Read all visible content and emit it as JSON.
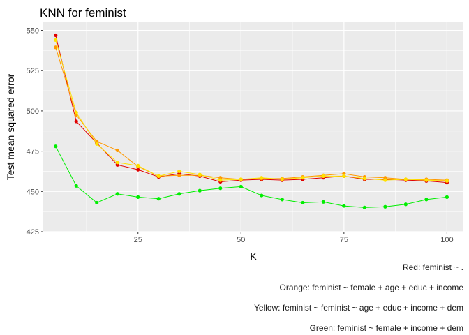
{
  "chart_data": {
    "type": "line",
    "title": "KNN for feminist",
    "xlabel": "K",
    "ylabel": "Test mean squared error",
    "xlim": [
      2,
      104
    ],
    "ylim": [
      425,
      555
    ],
    "x_ticks": [
      25,
      50,
      75,
      100
    ],
    "y_ticks": [
      425,
      450,
      475,
      500,
      525,
      550
    ],
    "grid": true,
    "legend": "none",
    "x": [
      5,
      10,
      15,
      20,
      25,
      30,
      35,
      40,
      45,
      50,
      55,
      60,
      65,
      70,
      75,
      80,
      85,
      90,
      95,
      100
    ],
    "series": [
      {
        "color": "#E00000",
        "values": [
          547,
          493.5,
          480,
          466.5,
          463.5,
          459,
          461,
          459.5,
          456,
          457,
          457.5,
          457,
          457.5,
          458.5,
          459.5,
          457.5,
          457.5,
          457,
          456.5,
          455.5
        ]
      },
      {
        "color": "#FF9900",
        "values": [
          539.5,
          497.5,
          481,
          475.5,
          465.5,
          459.5,
          460,
          460,
          458.5,
          457.5,
          458,
          458,
          459,
          460,
          461,
          459,
          458.5,
          457.5,
          457.5,
          457
        ]
      },
      {
        "color": "#FFE000",
        "values": [
          544,
          499,
          479.5,
          468,
          466,
          459.5,
          462.5,
          460.5,
          457,
          457.5,
          458.5,
          457.5,
          458.5,
          459.5,
          459.5,
          458,
          457,
          457.5,
          457,
          456.5
        ]
      },
      {
        "color": "#00EE00",
        "values": [
          478,
          453.5,
          443,
          448.5,
          446.5,
          445.5,
          448.5,
          450.5,
          452,
          453,
          447.5,
          445,
          443,
          443.5,
          441,
          440,
          440.5,
          442,
          445,
          446.5
        ]
      }
    ]
  },
  "captions": [
    "Red: feminist ~ .",
    "Orange: feminist ~ female + age + educ + income",
    "Yellow: feminist ~ feminist ~ age + educ + income + dem",
    "Green: feminist ~ female + income + dem"
  ]
}
